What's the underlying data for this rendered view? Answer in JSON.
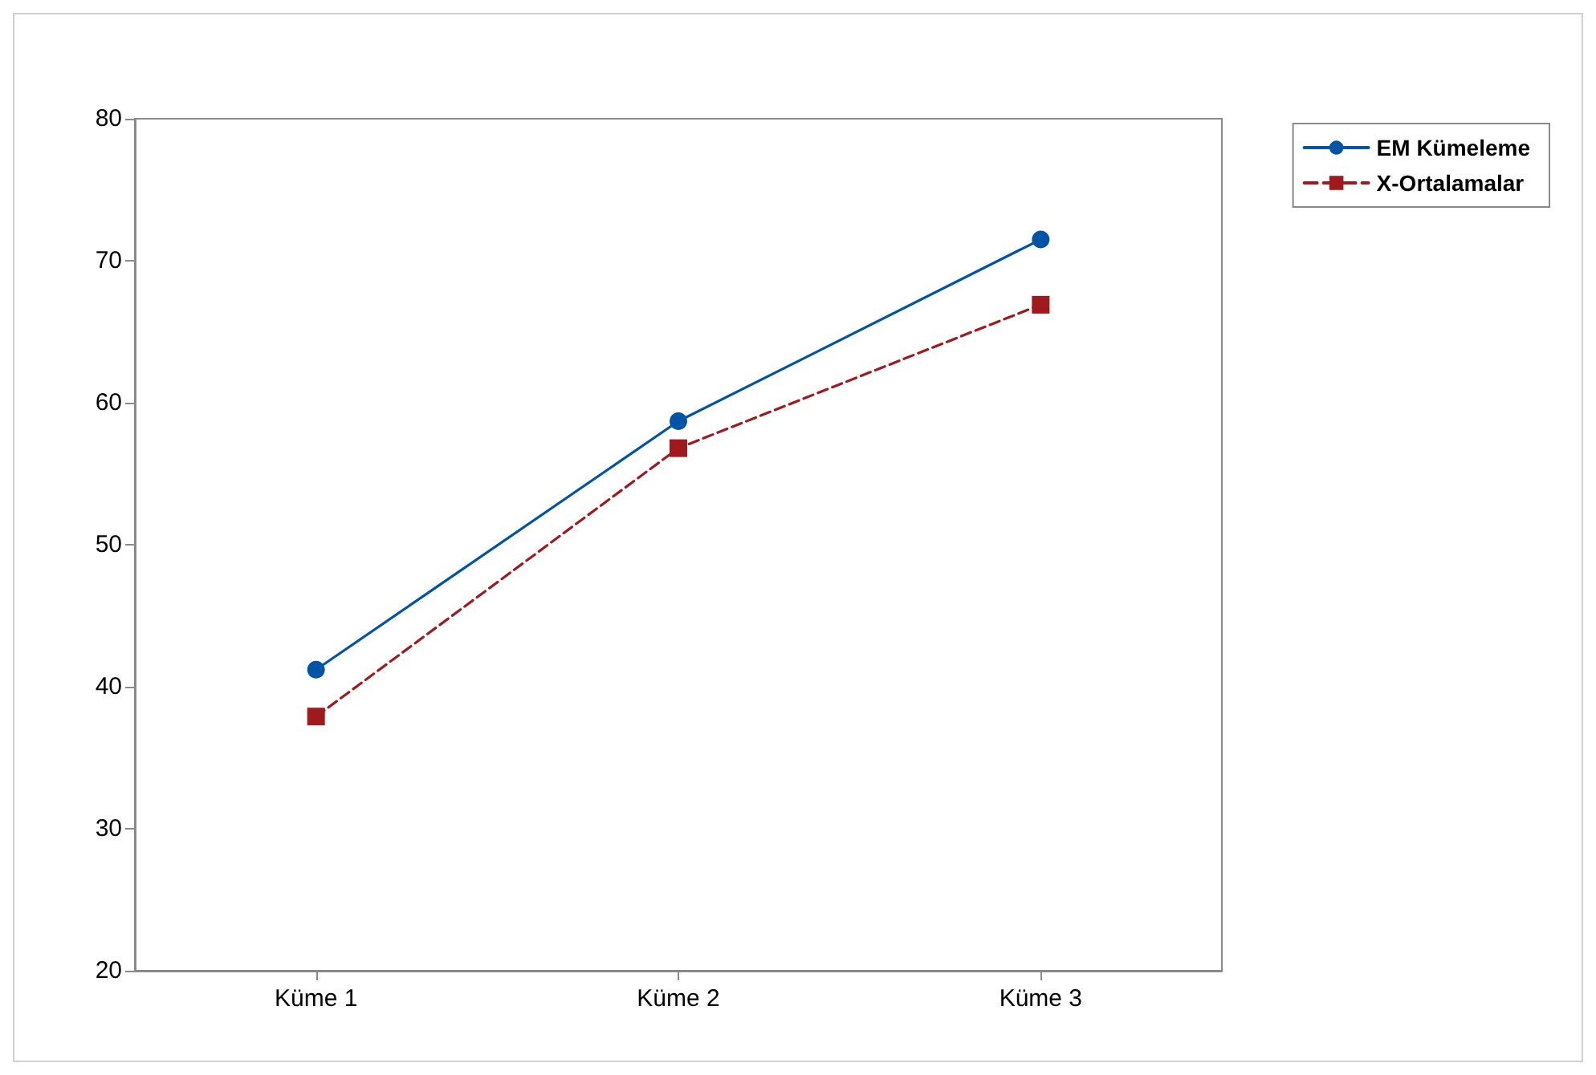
{
  "chart_data": {
    "type": "line",
    "categories": [
      "Küme 1",
      "Küme 2",
      "Küme 3"
    ],
    "series": [
      {
        "name": "EM Kümeleme",
        "color": "#0054a6",
        "values": [
          41.2,
          58.7,
          71.5
        ],
        "marker": "circle",
        "line_style": "solid"
      },
      {
        "name": "X-Ortalamalar",
        "color": "#a0191c",
        "values": [
          37.9,
          56.8,
          66.9
        ],
        "marker": "square",
        "line_style": "dashed"
      }
    ],
    "ylim": [
      20,
      80
    ],
    "yticks": [
      20,
      30,
      40,
      50,
      60,
      70,
      80
    ],
    "grid": false,
    "legend": "top right"
  }
}
